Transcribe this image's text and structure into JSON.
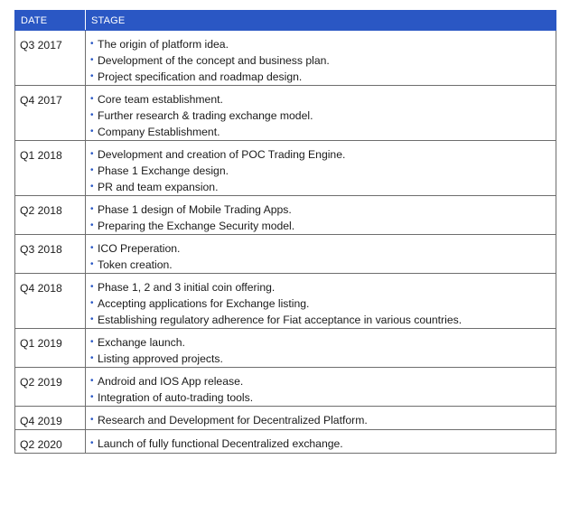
{
  "header": {
    "date": "DATE",
    "stage": "STAGE"
  },
  "rows": [
    {
      "date": "Q3 2017",
      "items": [
        "The origin of platform idea.",
        "Development of the concept and business plan.",
        "Project specification and roadmap design."
      ]
    },
    {
      "date": "Q4 2017",
      "items": [
        "Core team establishment.",
        "Further research & trading exchange model.",
        "Company Establishment."
      ]
    },
    {
      "date": "Q1 2018",
      "items": [
        "Development and creation of POC Trading Engine.",
        "Phase 1 Exchange design.",
        "PR and team expansion."
      ]
    },
    {
      "date": "Q2 2018",
      "items": [
        "Phase 1 design of Mobile Trading Apps.",
        "Preparing the Exchange Security model."
      ]
    },
    {
      "date": "Q3 2018",
      "items": [
        "ICO Preperation.",
        "Token creation."
      ]
    },
    {
      "date": "Q4 2018",
      "items": [
        "Phase 1, 2 and 3 initial coin offering.",
        "Accepting applications for Exchange listing.",
        "Establishing regulatory adherence for Fiat acceptance in various countries."
      ]
    },
    {
      "date": "Q1 2019",
      "items": [
        "Exchange launch.",
        "Listing approved projects."
      ]
    },
    {
      "date": "Q2 2019",
      "items": [
        "Android and IOS App release.",
        "Integration of auto-trading tools."
      ]
    },
    {
      "date": "Q4 2019",
      "items": [
        "Research and Development for Decentralized Platform."
      ]
    },
    {
      "date": "Q2 2020",
      "items": [
        "Launch of fully functional Decentralized exchange."
      ]
    }
  ]
}
